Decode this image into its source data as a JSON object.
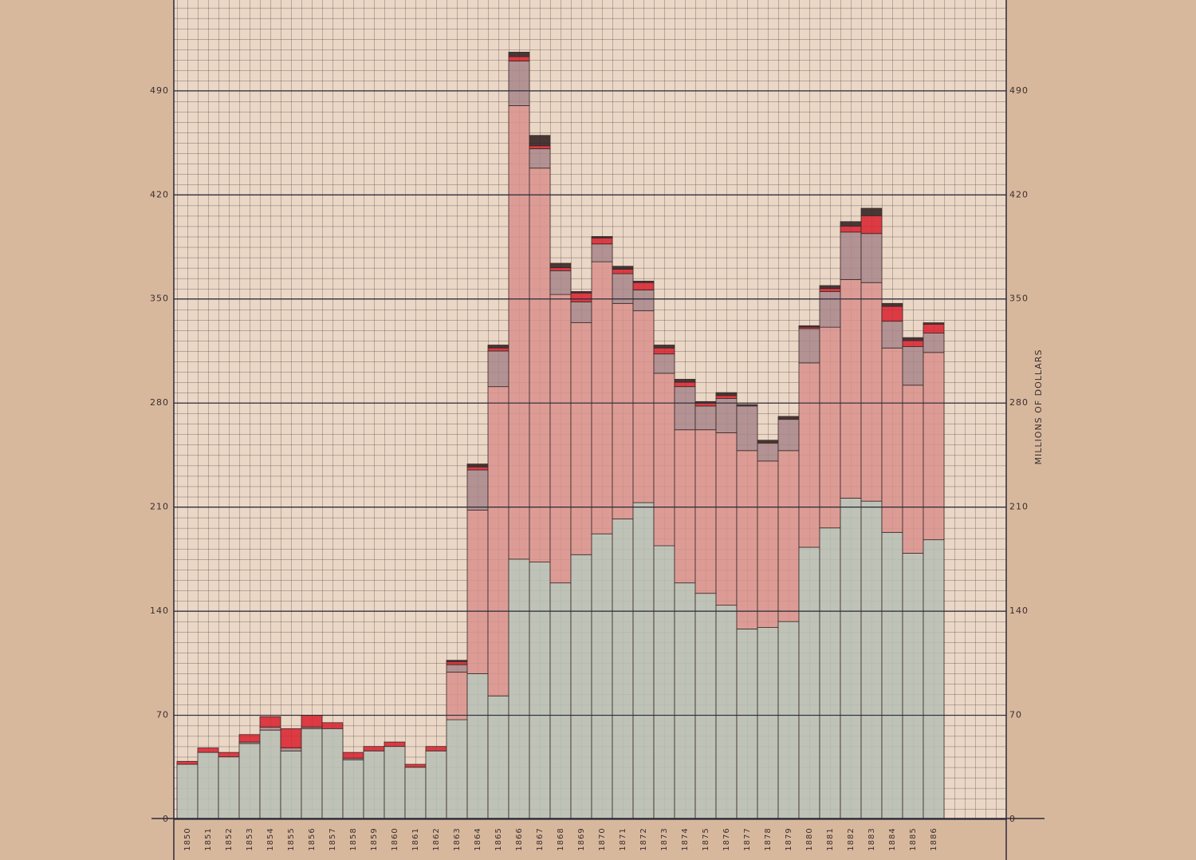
{
  "chart_data": {
    "type": "stacked-bar",
    "y_label": "MILLIONS OF DOLLARS",
    "categories": [
      "1850",
      "1851",
      "1852",
      "1853",
      "1854",
      "1855",
      "1856",
      "1857",
      "1858",
      "1859",
      "1860",
      "1861",
      "1862",
      "1863",
      "1864",
      "1865",
      "1866",
      "1867",
      "1868",
      "1869",
      "1870",
      "1871",
      "1872",
      "1873",
      "1874",
      "1875",
      "1876",
      "1877",
      "1878",
      "1879",
      "1880",
      "1881",
      "1882",
      "1883",
      "1884",
      "1885",
      "1886"
    ],
    "series": [
      {
        "color": "#b7c0b4",
        "values": [
          37,
          45,
          42,
          51,
          60,
          46,
          61,
          61,
          40,
          46,
          49,
          35,
          46,
          67,
          98,
          83,
          175,
          173,
          159,
          178,
          192,
          202,
          213,
          184,
          159,
          152,
          144,
          128,
          129,
          133,
          183,
          196,
          216,
          214,
          193,
          179,
          188
        ]
      },
      {
        "color": "#d9928c",
        "values": [
          0,
          0,
          0,
          0,
          0,
          0,
          0,
          0,
          0,
          0,
          0,
          0,
          0,
          32,
          110,
          208,
          305,
          265,
          194,
          156,
          183,
          145,
          129,
          116,
          103,
          110,
          116,
          120,
          112,
          115,
          124,
          135,
          147,
          147,
          124,
          113,
          126
        ]
      },
      {
        "color": "#a8868a",
        "values": [
          0,
          0,
          0,
          1,
          2,
          2,
          1,
          0,
          1,
          0,
          0,
          0,
          0,
          5,
          27,
          24,
          30,
          13,
          16,
          14,
          12,
          20,
          14,
          13,
          29,
          16,
          23,
          30,
          12,
          21,
          23,
          24,
          32,
          33,
          18,
          26,
          13
        ]
      },
      {
        "color": "#d9202c",
        "values": [
          2,
          3,
          3,
          5,
          7,
          13,
          8,
          4,
          4,
          3,
          3,
          2,
          3,
          2,
          2,
          2,
          3,
          2,
          2,
          6,
          4,
          3,
          5,
          4,
          3,
          2,
          2,
          0,
          0,
          0,
          1,
          2,
          4,
          12,
          10,
          4,
          6
        ]
      },
      {
        "color": "#2b1b1b",
        "values": [
          0,
          0,
          0,
          0,
          0,
          0,
          0,
          0,
          0,
          0,
          0,
          0,
          0,
          1,
          2,
          2,
          3,
          7,
          3,
          1,
          1,
          2,
          1,
          2,
          2,
          1,
          2,
          1,
          2,
          2,
          1,
          2,
          3,
          5,
          2,
          2,
          1
        ]
      }
    ],
    "ylim": [
      0,
      550
    ],
    "yticks": [
      0,
      70,
      140,
      210,
      280,
      350,
      420,
      490
    ],
    "grid": true
  }
}
